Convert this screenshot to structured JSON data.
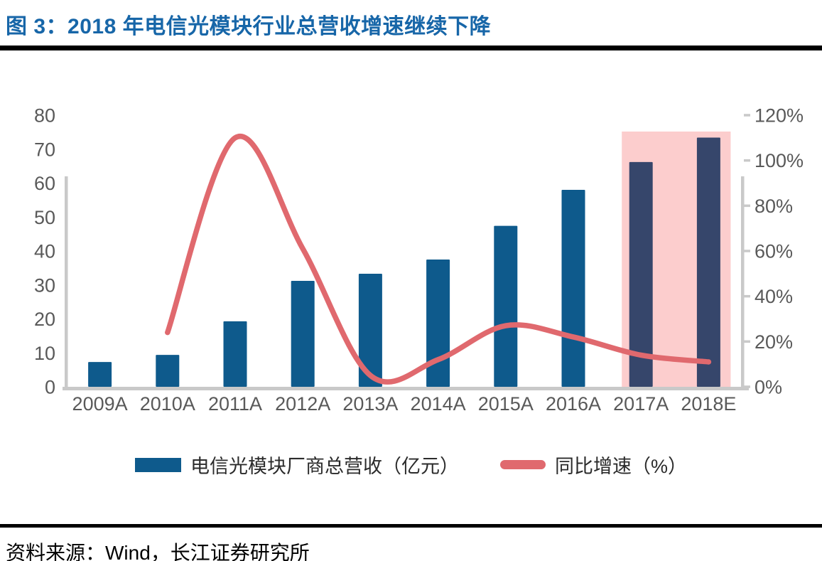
{
  "title": "图 3：2018 年电信光模块行业总营收增速继续下降",
  "source": "资料来源：Wind，长江证券研究所",
  "colors": {
    "title_text": "#1766A8",
    "title_rule": "#000000",
    "footer_rule": "#000000",
    "axis_line": "#C9C9C9",
    "axis_label": "#595959",
    "bar_blue": "#0E5A8C",
    "bar_navy": "#36466B",
    "growth_line": "#E0696E",
    "highlight_pink": "#FCCDCD"
  },
  "chart_data": {
    "type": "bar",
    "title": "2018 年电信光模块行业总营收增速继续下降",
    "categories": [
      "2009A",
      "2010A",
      "2011A",
      "2012A",
      "2013A",
      "2014A",
      "2015A",
      "2016A",
      "2017A",
      "2018E"
    ],
    "series": [
      {
        "name": "电信光模块厂商总营收（亿元）",
        "type": "bar",
        "axis": "left",
        "color": "#0E5A8C",
        "highlight_color": "#36466B",
        "highlight_categories": [
          "2017A",
          "2018E"
        ],
        "values": [
          7.3,
          9.4,
          19.3,
          31.2,
          33.3,
          37.5,
          47.4,
          58.0,
          66.2,
          73.4
        ]
      },
      {
        "name": "同比增速（%）",
        "type": "line",
        "axis": "right",
        "color": "#E0696E",
        "values": [
          null,
          24,
          110,
          61,
          5,
          12,
          27,
          22,
          14,
          11
        ]
      }
    ],
    "left_axis": {
      "min": 0,
      "max": 80,
      "step": 10,
      "labels": [
        "0",
        "10",
        "20",
        "30",
        "40",
        "50",
        "60",
        "70",
        "80"
      ]
    },
    "right_axis": {
      "min": 0,
      "max": 120,
      "step": 20,
      "labels": [
        "0%",
        "20%",
        "40%",
        "60%",
        "80%",
        "100%",
        "120%"
      ]
    },
    "highlight_region": {
      "categories": [
        "2017A",
        "2018E"
      ],
      "color": "#FCCDCD"
    },
    "legend_position": "bottom",
    "grid": false
  }
}
